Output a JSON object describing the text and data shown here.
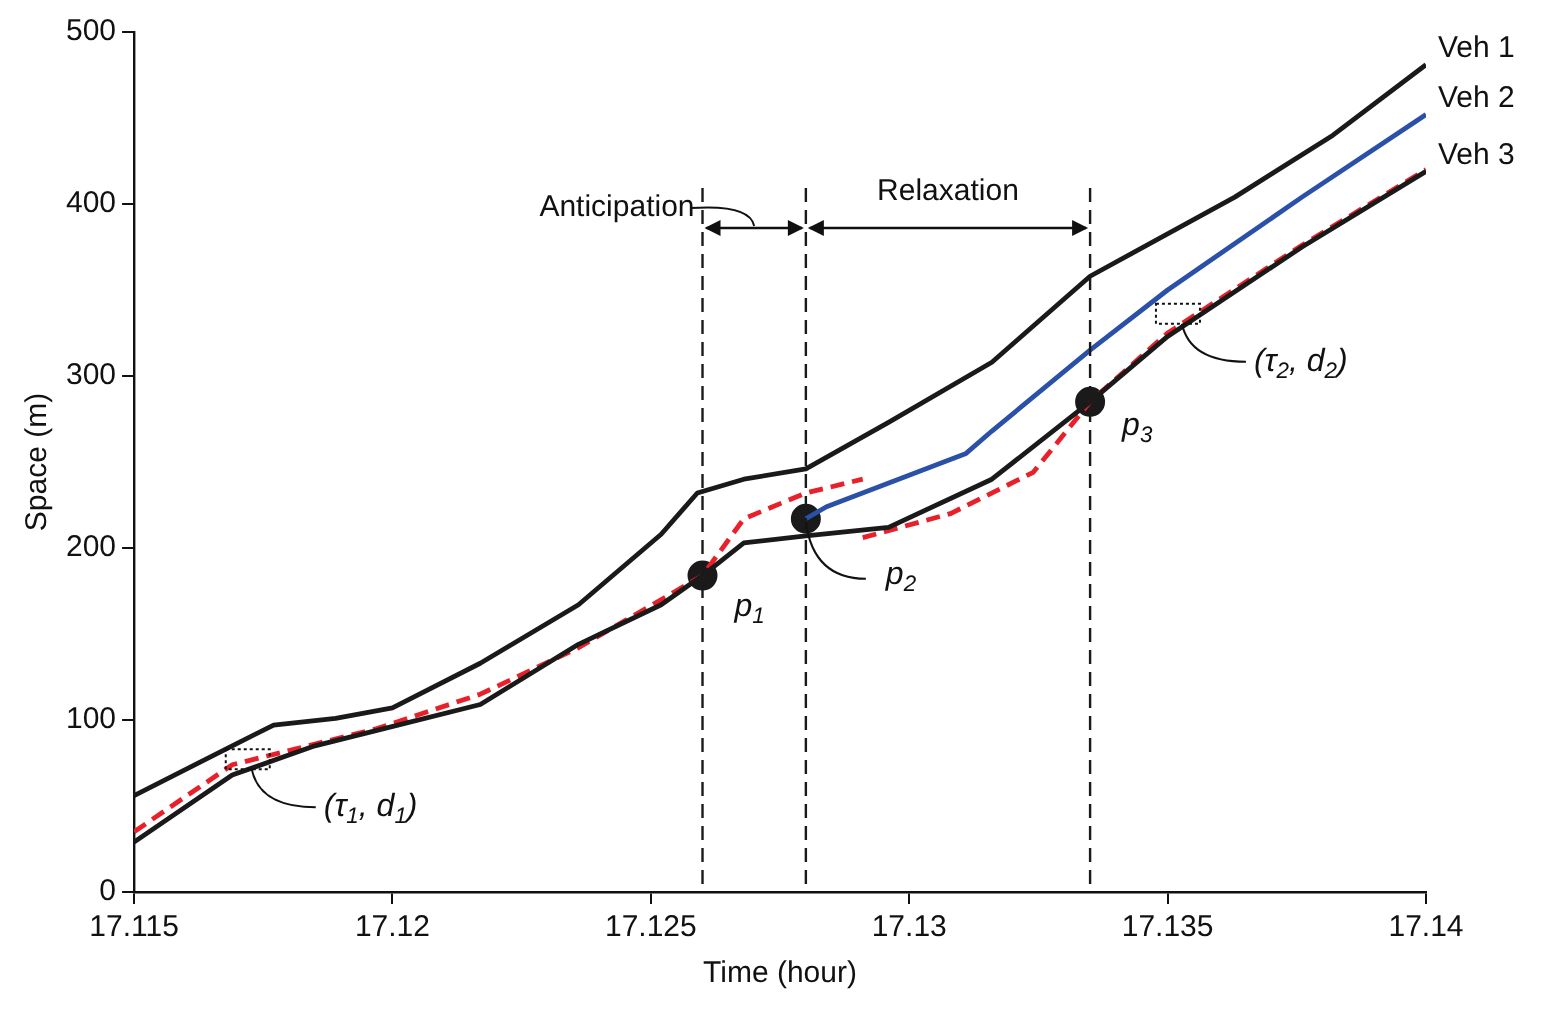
{
  "chart_data": {
    "type": "line",
    "xlabel": "Time (hour)",
    "ylabel": "Space (m)",
    "xlim": [
      17.115,
      17.14
    ],
    "xticks": [
      17.115,
      17.12,
      17.125,
      17.13,
      17.135,
      17.14
    ],
    "ylim": [
      0,
      500
    ],
    "yticks": [
      0,
      100,
      200,
      300,
      400,
      500
    ],
    "grid": false,
    "legend": false,
    "marker": "none",
    "series": [
      {
        "name": "Veh 1",
        "color": "#1a1a1a",
        "x": [
          17.115,
          17.1169,
          17.1177,
          17.1189,
          17.12,
          17.1217,
          17.1236,
          17.1252,
          17.1259,
          17.1268,
          17.128,
          17.1296,
          17.1316,
          17.1335,
          17.1363,
          17.1382,
          17.14
        ],
        "values": [
          56,
          85,
          97,
          101,
          107,
          133,
          167,
          208,
          232,
          240,
          246,
          273,
          308,
          358,
          404,
          440,
          481
        ]
      },
      {
        "name": "Veh 2",
        "color": "#2b50a8",
        "x": [
          17.128,
          17.1284,
          17.1311,
          17.1316,
          17.1335,
          17.135,
          17.1376,
          17.14
        ],
        "values": [
          217,
          224,
          255,
          268,
          315,
          350,
          404,
          452
        ]
      },
      {
        "name": "Veh 3",
        "color": "#1a1a1a",
        "x": [
          17.115,
          17.1169,
          17.1185,
          17.1197,
          17.1217,
          17.1236,
          17.1252,
          17.126,
          17.1268,
          17.128,
          17.1296,
          17.1316,
          17.1335,
          17.135,
          17.1376,
          17.14
        ],
        "values": [
          29,
          68,
          85,
          94,
          109,
          144,
          167,
          184,
          203,
          207,
          212,
          240,
          285,
          323,
          375,
          419
        ]
      },
      {
        "color": "#e8202a",
        "line_style": "dashed",
        "x": [
          17.115,
          17.1169,
          17.1197,
          17.1217,
          17.1236,
          17.126,
          17.1268,
          17.128,
          17.1291
        ],
        "values": [
          35,
          74,
          95,
          115,
          142,
          184,
          217,
          232,
          240
        ]
      },
      {
        "color": "#e8202a",
        "line_style": "dashed",
        "x": [
          17.1291,
          17.1308,
          17.1324,
          17.1335,
          17.135,
          17.1376,
          17.14
        ],
        "values": [
          206,
          220,
          244,
          285,
          325,
          376,
          420
        ]
      },
      {
        "type": "scatter",
        "marker": "circle",
        "color": "#1a1a1a",
        "x": [
          17.126,
          17.128,
          17.1335
        ],
        "values": [
          184,
          217,
          285
        ]
      }
    ],
    "ref_lines": [
      {
        "axis": "x",
        "value": 17.126,
        "line_style": "dashed",
        "color": "#1a1a1a"
      },
      {
        "axis": "x",
        "value": 17.128,
        "line_style": "dashed",
        "color": "#1a1a1a"
      },
      {
        "axis": "x",
        "value": 17.1335,
        "line_style": "dashed",
        "color": "#1a1a1a"
      }
    ],
    "annotations": [
      "Anticipation",
      "Relaxation",
      {
        "text": "p$_{1}$",
        "x": 17.126,
        "y": 184
      },
      {
        "text": "p$_{2}$",
        "x": 17.128,
        "y": 217
      },
      {
        "text": "p$_{3}$",
        "x": 17.1335,
        "y": 285
      },
      {
        "text": "(τ$_{1}$, d$_{1}$)",
        "x": 17.1172,
        "y": 76
      },
      {
        "text": "(τ$_{2}$, d$_{2}$)",
        "x": 17.1352,
        "y": 335
      }
    ]
  }
}
